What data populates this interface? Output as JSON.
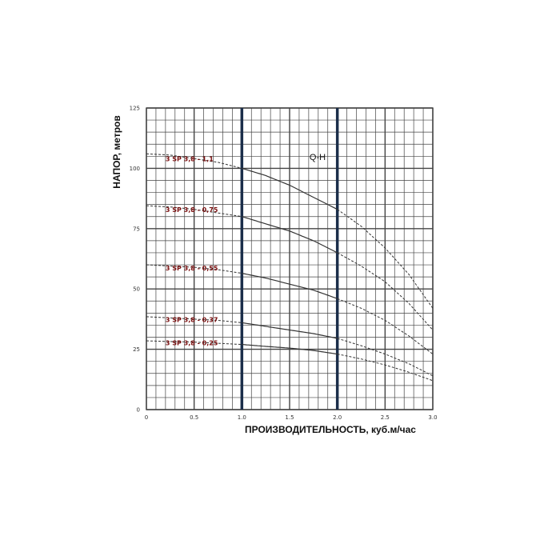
{
  "chart_data": {
    "type": "line",
    "xlabel": "ПРОИЗВОДИТЕЛЬНОСТЬ, куб.м/час",
    "ylabel": "НАПОР, метров",
    "xlim": [
      0,
      3.0
    ],
    "ylim": [
      0,
      125
    ],
    "x_ticks": [
      "0",
      "0.5",
      "1.0",
      "1.5",
      "2.0",
      "2.5",
      "3.0"
    ],
    "y_ticks": [
      "0",
      "25",
      "50",
      "75",
      "100",
      "125"
    ],
    "grid": true,
    "annotation": "Q-H",
    "working_range": [
      1.0,
      2.0
    ],
    "series": [
      {
        "name": "3 SP 3,8 - 1,1",
        "x": [
          0,
          0.25,
          0.5,
          0.75,
          1.0,
          1.25,
          1.5,
          1.75,
          2.0,
          2.25,
          2.5,
          2.75,
          3.0
        ],
        "y": [
          106,
          105.5,
          104,
          102.5,
          100,
          97,
          93,
          88,
          83,
          76,
          67,
          56,
          42
        ]
      },
      {
        "name": "3 SP 3,8 - 0,75",
        "x": [
          0,
          0.25,
          0.5,
          0.75,
          1.0,
          1.25,
          1.5,
          1.75,
          2.0,
          2.25,
          2.5,
          2.75,
          3.0
        ],
        "y": [
          84.5,
          84,
          83,
          81.5,
          80,
          77,
          74,
          70,
          65,
          59.5,
          53,
          44,
          33
        ]
      },
      {
        "name": "3 SP 3,8 - 0,55",
        "x": [
          0,
          0.25,
          0.5,
          0.75,
          1.0,
          1.25,
          1.5,
          1.75,
          2.0,
          2.25,
          2.5,
          2.75,
          3.0
        ],
        "y": [
          60,
          59.5,
          59,
          58,
          56.5,
          54.5,
          52,
          49.5,
          46,
          42,
          37,
          30.5,
          23
        ]
      },
      {
        "name": "3 SP 3,8 - 0,37",
        "x": [
          0,
          0.25,
          0.5,
          0.75,
          1.0,
          1.25,
          1.5,
          1.75,
          2.0,
          2.25,
          2.5,
          2.75,
          3.0
        ],
        "y": [
          38.5,
          38,
          37.5,
          37,
          36,
          34.5,
          33,
          31.5,
          29.5,
          26.5,
          23,
          19,
          14
        ]
      },
      {
        "name": "3 SP 3,8 - 0,25",
        "x": [
          0,
          0.25,
          0.5,
          0.75,
          1.0,
          1.25,
          1.5,
          1.75,
          2.0,
          2.25,
          2.5,
          2.75,
          3.0
        ],
        "y": [
          28.5,
          28.2,
          28,
          27.5,
          27,
          26.2,
          25.5,
          24.5,
          23,
          21,
          18.5,
          15.5,
          12
        ]
      }
    ]
  },
  "colors": {
    "grid": "#444444",
    "curve": "#333333",
    "working_range_line": "#1b2e4a",
    "curve_label": "#7a1010"
  }
}
